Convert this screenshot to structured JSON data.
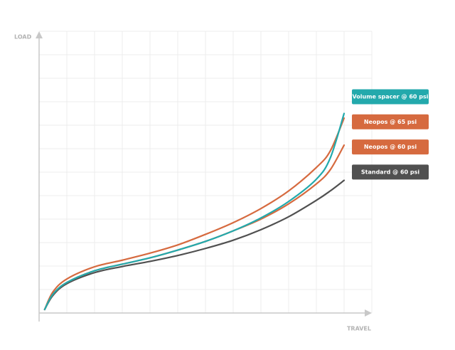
{
  "chart_data": {
    "type": "line",
    "y_label": "LOAD",
    "x_label": "TRAVEL",
    "xlim": [
      0,
      12
    ],
    "ylim": [
      0,
      12
    ],
    "xticks": [
      1,
      2,
      3,
      4,
      5,
      6,
      7,
      8,
      9,
      10,
      11,
      12
    ],
    "yticks": [
      1,
      2,
      3,
      4,
      5,
      6,
      7,
      8,
      9,
      10,
      11,
      12
    ],
    "grid": true,
    "x": [
      0.2,
      0.5,
      1,
      2,
      3,
      4,
      5,
      6,
      7,
      8,
      9,
      10,
      10.5,
      11
    ],
    "series": [
      {
        "name": "Volume spacer @ 60 psi",
        "color": "#23a9ac",
        "values": [
          0.15,
          0.8,
          1.3,
          1.8,
          2.08,
          2.35,
          2.68,
          3.05,
          3.5,
          4.05,
          4.75,
          5.7,
          6.6,
          8.5
        ]
      },
      {
        "name": "Neopos @ 65 psi",
        "color": "#d66a3f",
        "values": [
          0.15,
          0.9,
          1.45,
          1.97,
          2.25,
          2.55,
          2.9,
          3.35,
          3.85,
          4.45,
          5.2,
          6.2,
          6.9,
          8.3
        ]
      },
      {
        "name": "Neopos @ 60 psi",
        "color": "#d66a3f",
        "values": [
          0.15,
          0.8,
          1.3,
          1.8,
          2.08,
          2.35,
          2.68,
          3.05,
          3.5,
          4.0,
          4.65,
          5.5,
          6.1,
          7.15
        ]
      },
      {
        "name": "Standard @ 60 psi",
        "color": "#505050",
        "values": [
          0.15,
          0.75,
          1.25,
          1.72,
          1.98,
          2.2,
          2.45,
          2.75,
          3.1,
          3.55,
          4.1,
          4.8,
          5.2,
          5.65
        ]
      }
    ]
  }
}
